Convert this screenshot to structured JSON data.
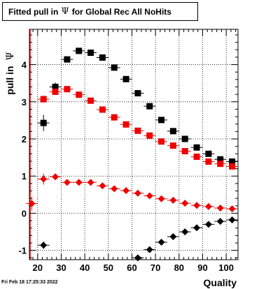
{
  "title": {
    "prefix": "Fitted pull in",
    "symbol": "Ψ",
    "suffix": "for Global Rec All NoHits"
  },
  "timestamp": "Fri Feb 18 17:25:33 2022",
  "chart_data": {
    "type": "scatter",
    "xlabel": "Quality",
    "ylabel_prefix": "pull in",
    "ylabel_symbol": "Ψ",
    "xlim": [
      16.5,
      105
    ],
    "ylim": [
      -1.25,
      4.95
    ],
    "xticks": [
      20,
      30,
      40,
      50,
      60,
      70,
      80,
      90,
      100
    ],
    "yticks": [
      -1,
      0,
      1,
      2,
      3,
      4
    ],
    "grid": true,
    "colors": {
      "red": "#ee0000",
      "black": "#000000"
    },
    "series": [
      {
        "marker": "square",
        "color": "#000000",
        "x": [
          22.5,
          27.5,
          32.5,
          37.5,
          42.5,
          47.5,
          52.5,
          57.5,
          62.5,
          67.5,
          72.5,
          77.5,
          82.5,
          87.5,
          92.5,
          97.5,
          102.5
        ],
        "y": [
          2.43,
          3.4,
          4.14,
          4.37,
          4.32,
          4.19,
          3.92,
          3.61,
          3.23,
          2.88,
          2.51,
          2.21,
          2.0,
          1.77,
          1.6,
          1.45,
          1.39
        ],
        "yerr": [
          0.22,
          0.12,
          0.06,
          0.05,
          0.04,
          0.04,
          0.03,
          0.03,
          0.03,
          0.03,
          0.03,
          0.03,
          0.03,
          0.03,
          0.03,
          0.03,
          0.03
        ]
      },
      {
        "marker": "square",
        "color": "#ee0000",
        "x": [
          22.5,
          27.5,
          32.5,
          37.5,
          42.5,
          47.5,
          52.5,
          57.5,
          62.5,
          67.5,
          72.5,
          77.5,
          82.5,
          87.5,
          92.5,
          97.5,
          102.5
        ],
        "y": [
          3.07,
          3.27,
          3.34,
          3.19,
          3.03,
          2.79,
          2.58,
          2.39,
          2.22,
          2.09,
          1.93,
          1.82,
          1.67,
          1.52,
          1.39,
          1.33,
          1.26
        ],
        "yerr": [
          0.1,
          0.06,
          0.04,
          0.03,
          0.03,
          0.03,
          0.03,
          0.03,
          0.02,
          0.02,
          0.02,
          0.02,
          0.02,
          0.02,
          0.02,
          0.02,
          0.02
        ]
      },
      {
        "marker": "diamond",
        "color": "#ee0000",
        "x": [
          17.5,
          22.5,
          27.5,
          32.5,
          37.5,
          42.5,
          47.5,
          52.5,
          57.5,
          62.5,
          67.5,
          72.5,
          77.5,
          82.5,
          87.5,
          92.5,
          97.5,
          102.5
        ],
        "y": [
          0.26,
          0.92,
          0.98,
          0.83,
          0.83,
          0.83,
          0.74,
          0.66,
          0.61,
          0.54,
          0.47,
          0.39,
          0.35,
          0.27,
          0.21,
          0.18,
          0.14,
          0.12
        ],
        "yerr": [
          0.18,
          0.15,
          0.08,
          0.05,
          0.04,
          0.03,
          0.03,
          0.03,
          0.02,
          0.02,
          0.02,
          0.02,
          0.02,
          0.02,
          0.02,
          0.02,
          0.02,
          0.02
        ]
      },
      {
        "marker": "diamond",
        "color": "#000000",
        "x": [
          22.5,
          62.5,
          67.5,
          72.5,
          77.5,
          82.5,
          87.5,
          92.5,
          97.5,
          102.5
        ],
        "y": [
          -0.86,
          -1.2,
          -0.98,
          -0.78,
          -0.63,
          -0.5,
          -0.39,
          -0.3,
          -0.22,
          -0.18
        ],
        "yerr": [
          0.1,
          0.05,
          0.04,
          0.03,
          0.03,
          0.03,
          0.03,
          0.03,
          0.03,
          0.03
        ]
      }
    ]
  }
}
